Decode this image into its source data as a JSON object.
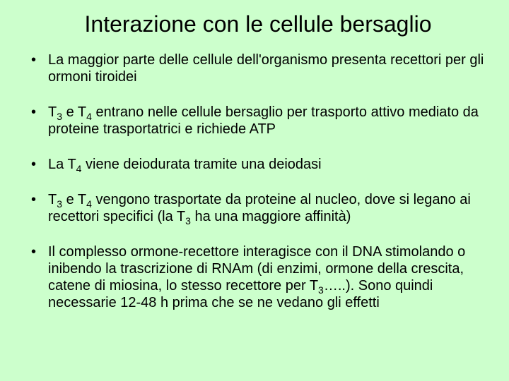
{
  "background_color": "#ccffcc",
  "text_color": "#000000",
  "title_fontsize": 32,
  "body_fontsize": 20,
  "title": "Interazione con le cellule bersaglio",
  "bullets": [
    {
      "html": "La maggior parte delle cellule dell'organismo presenta recettori per gli ormoni tiroidei"
    },
    {
      "html": "T<span class=\"sub\">3</span> e T<span class=\"sub\">4</span> entrano nelle cellule bersaglio per trasporto attivo mediato da proteine trasportatrici e richiede ATP"
    },
    {
      "html": "La T<span class=\"sub\">4</span> viene deiodurata tramite una deiodasi"
    },
    {
      "html": "T<span class=\"sub\">3</span> e T<span class=\"sub\">4</span> vengono trasportate da proteine al nucleo, dove si legano ai recettori specifici (la T<span class=\"sub\">3</span> ha una maggiore affinità)"
    },
    {
      "html": "Il complesso ormone-recettore interagisce con il DNA stimolando o inibendo la trascrizione di RNAm (di enzimi, ormone della crescita, catene di miosina, lo stesso recettore per T<span class=\"sub\">3</span>…..). Sono quindi necessarie 12-48 h prima che se ne vedano gli effetti"
    }
  ]
}
